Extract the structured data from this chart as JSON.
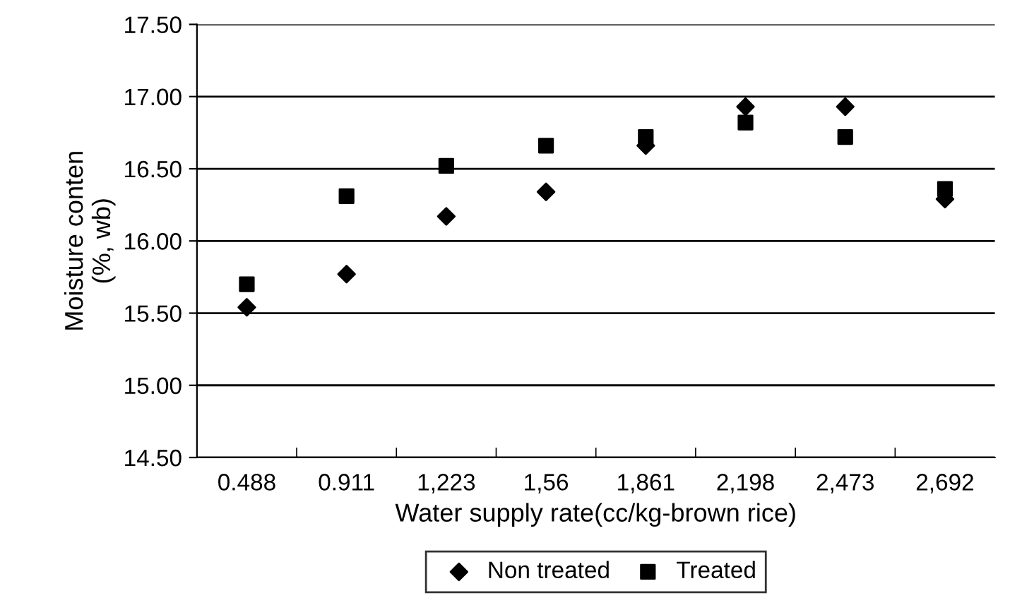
{
  "chart_data": {
    "type": "scatter",
    "xlabel": "Water supply rate(cc/kg-brown rice)",
    "ylabel": "Moisture conten\n(%, wb)",
    "categories": [
      "0.488",
      "0.911",
      "1,223",
      "1,56",
      "1,861",
      "2,198",
      "2,473",
      "2,692"
    ],
    "series": [
      {
        "name": "Non treated",
        "color": "#000000",
        "marker": "diamond",
        "values": [
          15.54,
          15.77,
          16.17,
          16.34,
          16.66,
          16.93,
          16.93,
          16.29
        ]
      },
      {
        "name": "Treated",
        "color": "#000000",
        "marker": "square",
        "values": [
          15.7,
          16.31,
          16.52,
          16.66,
          16.72,
          16.82,
          16.72,
          16.36
        ]
      }
    ],
    "ylim": [
      14.5,
      17.5
    ],
    "yticks": [
      {
        "value": 14.5,
        "label": "14.50"
      },
      {
        "value": 15.0,
        "label": "15.00"
      },
      {
        "value": 15.5,
        "label": "15.50"
      },
      {
        "value": 16.0,
        "label": "16.00"
      },
      {
        "value": 16.5,
        "label": "16.50"
      },
      {
        "value": 17.0,
        "label": "17.00"
      },
      {
        "value": 17.5,
        "label": "17.50"
      }
    ],
    "grid": "y",
    "legend": "bottom"
  }
}
